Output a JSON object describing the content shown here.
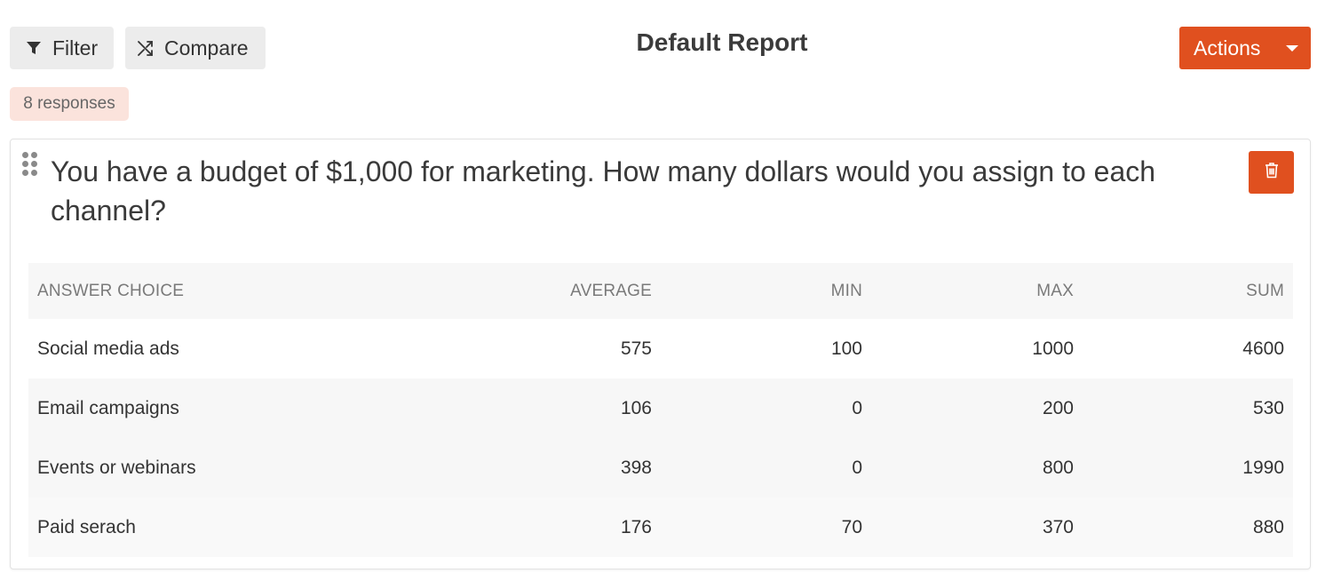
{
  "toolbar": {
    "filter_label": "Filter",
    "compare_label": "Compare",
    "actions_label": "Actions"
  },
  "page_title": "Default Report",
  "responses_badge": "8 responses",
  "question": {
    "text": "You have a budget of $1,000 for marketing. How many dollars would you assign to each channel?"
  },
  "table": {
    "columns": [
      "ANSWER CHOICE",
      "AVERAGE",
      "MIN",
      "MAX",
      "SUM"
    ],
    "rows": [
      {
        "choice": "Social media ads",
        "average": "575",
        "min": "100",
        "max": "1000",
        "sum": "4600"
      },
      {
        "choice": "Email campaigns",
        "average": "106",
        "min": "0",
        "max": "200",
        "sum": "530"
      },
      {
        "choice": "Events or webinars",
        "average": "398",
        "min": "0",
        "max": "800",
        "sum": "1990"
      },
      {
        "choice": "Paid serach",
        "average": "176",
        "min": "70",
        "max": "370",
        "sum": "880"
      }
    ]
  },
  "colors": {
    "accent": "#e0501f",
    "badge_bg": "#fbe3dc",
    "button_gray": "#ececec"
  },
  "icons": {
    "filter": "filter-icon",
    "compare": "shuffle-icon",
    "actions_caret": "caret-down-icon",
    "drag": "drag-handle-icon",
    "delete": "trash-icon"
  }
}
